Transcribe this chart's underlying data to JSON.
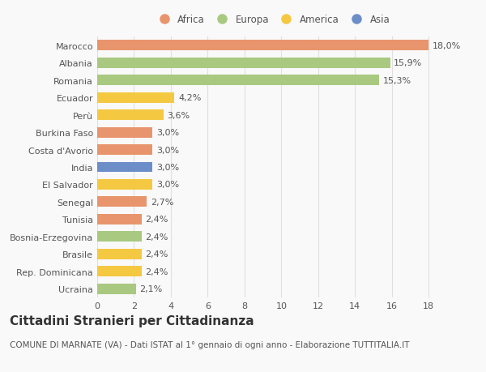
{
  "categories": [
    "Ucraina",
    "Rep. Dominicana",
    "Brasile",
    "Bosnia-Erzegovina",
    "Tunisia",
    "Senegal",
    "El Salvador",
    "India",
    "Costa d'Avorio",
    "Burkina Faso",
    "Perù",
    "Ecuador",
    "Romania",
    "Albania",
    "Marocco"
  ],
  "values": [
    2.1,
    2.4,
    2.4,
    2.4,
    2.4,
    2.7,
    3.0,
    3.0,
    3.0,
    3.0,
    3.6,
    4.2,
    15.3,
    15.9,
    18.0
  ],
  "colors": [
    "#a8c97f",
    "#f5c842",
    "#f5c842",
    "#a8c97f",
    "#e8956d",
    "#e8956d",
    "#f5c842",
    "#6b8ec9",
    "#e8956d",
    "#e8956d",
    "#f5c842",
    "#f5c842",
    "#a8c97f",
    "#a8c97f",
    "#e8956d"
  ],
  "labels": [
    "2,1%",
    "2,4%",
    "2,4%",
    "2,4%",
    "2,4%",
    "2,7%",
    "3,0%",
    "3,0%",
    "3,0%",
    "3,0%",
    "3,6%",
    "4,2%",
    "15,3%",
    "15,9%",
    "18,0%"
  ],
  "legend": {
    "Africa": "#e8956d",
    "Europa": "#a8c97f",
    "America": "#f5c842",
    "Asia": "#6b8ec9"
  },
  "title": "Cittadini Stranieri per Cittadinanza",
  "subtitle": "COMUNE DI MARNATE (VA) - Dati ISTAT al 1° gennaio di ogni anno - Elaborazione TUTTITALIA.IT",
  "xlim": [
    0,
    19
  ],
  "xticks": [
    0,
    2,
    4,
    6,
    8,
    10,
    12,
    14,
    16,
    18
  ],
  "background_color": "#f9f9f9",
  "grid_color": "#e0e0e0",
  "text_color": "#555555",
  "label_fontsize": 8,
  "tick_fontsize": 8,
  "title_fontsize": 11,
  "subtitle_fontsize": 7.5,
  "bar_height": 0.6
}
